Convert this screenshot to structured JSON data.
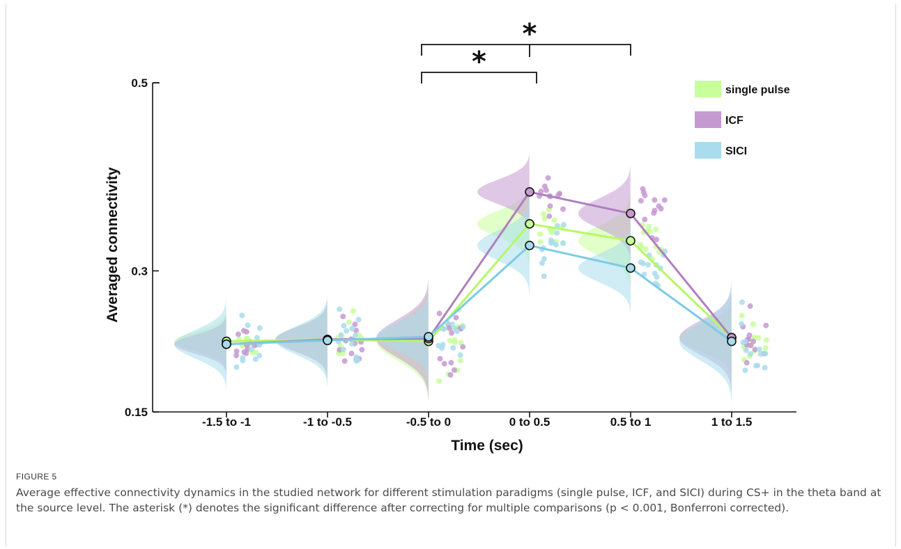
{
  "figure": {
    "label": "FIGURE 5",
    "caption": "Average effective connectivity dynamics in the studied network for different stimulation paradigms (single pulse, ICF, and SICI) during CS+ in the theta band at the source level. The asterisk (*) denotes the significant difference after correcting for multiple comparisons (p < 0.001, Bonferroni corrected)."
  },
  "chart_data": {
    "type": "line",
    "title": "",
    "xlabel": "Time (sec)",
    "ylabel": "Averaged connectivity",
    "categories": [
      "-1.5 to -1",
      "-1 to -0.5",
      "-0.5 to 0",
      "0 to 0.5",
      "0.5 to 1",
      "1 to 1.5"
    ],
    "ylim": [
      0.15,
      0.5
    ],
    "yticks": [
      "0.15",
      "0.3",
      "0.5"
    ],
    "ytick_values": [
      0.15,
      0.3,
      0.5
    ],
    "legend_position": "top-right",
    "series": [
      {
        "name": "single pulse",
        "color": "#c8ff9a",
        "line_color": "#b6f765",
        "values": [
          0.225,
          0.227,
          0.225,
          0.35,
          0.332,
          0.229
        ],
        "spread": [
          0.01,
          0.013,
          0.02,
          0.014,
          0.016,
          0.014
        ]
      },
      {
        "name": "ICF",
        "color": "#c59ad1",
        "line_color": "#b07fbd",
        "values": [
          0.222,
          0.227,
          0.228,
          0.384,
          0.361,
          0.229
        ],
        "spread": [
          0.01,
          0.013,
          0.02,
          0.013,
          0.016,
          0.018
        ]
      },
      {
        "name": "SICI",
        "color": "#a9dcec",
        "line_color": "#7ccbe4",
        "values": [
          0.222,
          0.226,
          0.23,
          0.327,
          0.303,
          0.225
        ],
        "spread": [
          0.015,
          0.015,
          0.015,
          0.016,
          0.015,
          0.02
        ]
      }
    ],
    "significance": [
      {
        "from": "-0.5 to 0",
        "to": "0 to 0.5",
        "symbol": "*"
      },
      {
        "from": "-0.5 to 0",
        "to": "0.5 to 1",
        "symbol": "*"
      }
    ],
    "grid": false
  }
}
